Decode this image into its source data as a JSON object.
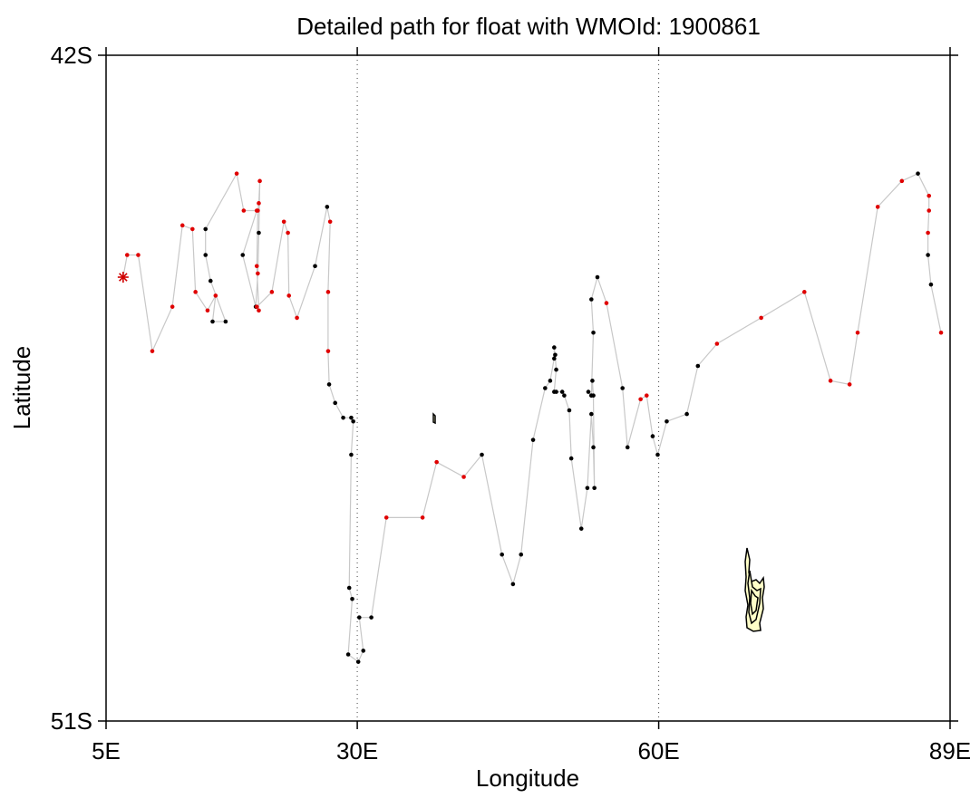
{
  "chart_data": {
    "type": "scatter",
    "title": "Detailed path for float with WMOId: 1900861",
    "xlabel": "Longitude",
    "ylabel": "Latitude",
    "xlim": [
      5,
      89
    ],
    "ylim": [
      -51,
      -42
    ],
    "x_ticks": [
      {
        "value": 5,
        "label": "5E"
      },
      {
        "value": 30,
        "label": "30E"
      },
      {
        "value": 60,
        "label": "60E"
      },
      {
        "value": 89,
        "label": "89E"
      }
    ],
    "y_ticks": [
      {
        "value": -42,
        "label": "42S"
      },
      {
        "value": -51,
        "label": "51S"
      }
    ],
    "grid_x": [
      30,
      60
    ],
    "grid_style": "dotted vertical",
    "colors": {
      "track_line": "#c8c8c8",
      "profile_black": "#000000",
      "profile_red": "#e00000",
      "start_marker": "#d00000",
      "land_fill": "#ffffc8",
      "land_edge": "#000000"
    },
    "start_marker": {
      "lon": 6.7,
      "lat": -45.0,
      "symbol": "asterisk"
    },
    "track": [
      {
        "lon": 7.1,
        "lat": -44.7,
        "c": "r"
      },
      {
        "lon": 8.2,
        "lat": -44.7,
        "c": "r"
      },
      {
        "lon": 9.6,
        "lat": -46.0,
        "c": "r"
      },
      {
        "lon": 11.6,
        "lat": -45.4,
        "c": "r"
      },
      {
        "lon": 12.6,
        "lat": -44.3,
        "c": "r"
      },
      {
        "lon": 13.6,
        "lat": -44.35,
        "c": "r"
      },
      {
        "lon": 13.9,
        "lat": -45.2,
        "c": "r"
      },
      {
        "lon": 15.1,
        "lat": -45.45,
        "c": "r"
      },
      {
        "lon": 15.9,
        "lat": -45.25,
        "c": "r"
      },
      {
        "lon": 15.6,
        "lat": -45.6,
        "c": "k"
      },
      {
        "lon": 16.9,
        "lat": -45.6,
        "c": "k"
      },
      {
        "lon": 15.4,
        "lat": -45.05,
        "c": "k"
      },
      {
        "lon": 14.9,
        "lat": -44.7,
        "c": "k"
      },
      {
        "lon": 14.9,
        "lat": -44.35,
        "c": "k"
      },
      {
        "lon": 18.0,
        "lat": -43.6,
        "c": "r"
      },
      {
        "lon": 18.7,
        "lat": -44.1,
        "c": "r"
      },
      {
        "lon": 20.0,
        "lat": -44.1,
        "c": "r"
      },
      {
        "lon": 18.6,
        "lat": -44.7,
        "c": "k"
      },
      {
        "lon": 19.9,
        "lat": -45.4,
        "c": "k"
      },
      {
        "lon": 20.1,
        "lat": -44.95,
        "c": "r"
      },
      {
        "lon": 20.2,
        "lat": -44.4,
        "c": "k"
      },
      {
        "lon": 20.3,
        "lat": -43.7,
        "c": "r"
      },
      {
        "lon": 20.2,
        "lat": -44.0,
        "c": "r"
      },
      {
        "lon": 20.1,
        "lat": -44.1,
        "c": "r"
      },
      {
        "lon": 20.0,
        "lat": -44.85,
        "c": "r"
      },
      {
        "lon": 20.2,
        "lat": -45.45,
        "c": "r"
      },
      {
        "lon": 20.0,
        "lat": -45.4,
        "c": "r"
      },
      {
        "lon": 21.5,
        "lat": -45.2,
        "c": "r"
      },
      {
        "lon": 22.7,
        "lat": -44.25,
        "c": "r"
      },
      {
        "lon": 23.1,
        "lat": -44.4,
        "c": "r"
      },
      {
        "lon": 23.2,
        "lat": -45.25,
        "c": "r"
      },
      {
        "lon": 24.0,
        "lat": -45.55,
        "c": "r"
      },
      {
        "lon": 25.8,
        "lat": -44.85,
        "c": "k"
      },
      {
        "lon": 27.0,
        "lat": -44.05,
        "c": "k"
      },
      {
        "lon": 27.3,
        "lat": -44.25,
        "c": "r"
      },
      {
        "lon": 27.1,
        "lat": -45.2,
        "c": "r"
      },
      {
        "lon": 27.1,
        "lat": -46.0,
        "c": "r"
      },
      {
        "lon": 27.2,
        "lat": -46.45,
        "c": "k"
      },
      {
        "lon": 27.8,
        "lat": -46.7,
        "c": "k"
      },
      {
        "lon": 28.6,
        "lat": -46.9,
        "c": "k"
      },
      {
        "lon": 29.4,
        "lat": -46.9,
        "c": "k"
      },
      {
        "lon": 29.6,
        "lat": -46.95,
        "c": "k"
      },
      {
        "lon": 29.4,
        "lat": -47.4,
        "c": "k"
      },
      {
        "lon": 29.2,
        "lat": -49.2,
        "c": "k"
      },
      {
        "lon": 29.5,
        "lat": -49.35,
        "c": "k"
      },
      {
        "lon": 29.1,
        "lat": -50.1,
        "c": "k"
      },
      {
        "lon": 30.1,
        "lat": -50.2,
        "c": "k"
      },
      {
        "lon": 30.6,
        "lat": -50.05,
        "c": "k"
      },
      {
        "lon": 30.2,
        "lat": -49.6,
        "c": "k"
      },
      {
        "lon": 31.4,
        "lat": -49.6,
        "c": "k"
      },
      {
        "lon": 32.9,
        "lat": -48.25,
        "c": "r"
      },
      {
        "lon": 36.5,
        "lat": -48.25,
        "c": "r"
      },
      {
        "lon": 37.9,
        "lat": -47.5,
        "c": "r"
      },
      {
        "lon": 40.6,
        "lat": -47.7,
        "c": "r"
      },
      {
        "lon": 42.4,
        "lat": -47.4,
        "c": "k"
      },
      {
        "lon": 44.4,
        "lat": -48.75,
        "c": "k"
      },
      {
        "lon": 45.5,
        "lat": -49.15,
        "c": "k"
      },
      {
        "lon": 46.3,
        "lat": -48.75,
        "c": "k"
      },
      {
        "lon": 47.5,
        "lat": -47.2,
        "c": "k"
      },
      {
        "lon": 48.7,
        "lat": -46.5,
        "c": "k"
      },
      {
        "lon": 49.2,
        "lat": -46.4,
        "c": "k"
      },
      {
        "lon": 49.6,
        "lat": -46.1,
        "c": "k"
      },
      {
        "lon": 49.6,
        "lat": -45.95,
        "c": "k"
      },
      {
        "lon": 49.7,
        "lat": -46.05,
        "c": "k"
      },
      {
        "lon": 49.8,
        "lat": -46.25,
        "c": "k"
      },
      {
        "lon": 49.6,
        "lat": -46.55,
        "c": "k"
      },
      {
        "lon": 49.8,
        "lat": -46.55,
        "c": "k"
      },
      {
        "lon": 50.4,
        "lat": -46.55,
        "c": "k"
      },
      {
        "lon": 50.6,
        "lat": -46.6,
        "c": "k"
      },
      {
        "lon": 51.1,
        "lat": -46.8,
        "c": "k"
      },
      {
        "lon": 51.3,
        "lat": -47.45,
        "c": "k"
      },
      {
        "lon": 52.3,
        "lat": -48.4,
        "c": "k"
      },
      {
        "lon": 52.9,
        "lat": -47.85,
        "c": "k"
      },
      {
        "lon": 53.3,
        "lat": -46.85,
        "c": "k"
      },
      {
        "lon": 53.5,
        "lat": -47.3,
        "c": "k"
      },
      {
        "lon": 53.6,
        "lat": -47.85,
        "c": "k"
      },
      {
        "lon": 53.5,
        "lat": -46.6,
        "c": "k"
      },
      {
        "lon": 53.4,
        "lat": -46.4,
        "c": "k"
      },
      {
        "lon": 53.3,
        "lat": -46.6,
        "c": "k"
      },
      {
        "lon": 53.0,
        "lat": -46.55,
        "c": "k"
      },
      {
        "lon": 53.3,
        "lat": -46.6,
        "c": "k"
      },
      {
        "lon": 53.5,
        "lat": -45.75,
        "c": "k"
      },
      {
        "lon": 53.3,
        "lat": -45.3,
        "c": "k"
      },
      {
        "lon": 53.9,
        "lat": -45.0,
        "c": "k"
      },
      {
        "lon": 54.8,
        "lat": -45.35,
        "c": "r"
      },
      {
        "lon": 56.4,
        "lat": -46.5,
        "c": "k"
      },
      {
        "lon": 56.9,
        "lat": -47.3,
        "c": "k"
      },
      {
        "lon": 58.2,
        "lat": -46.65,
        "c": "r"
      },
      {
        "lon": 58.8,
        "lat": -46.6,
        "c": "r"
      },
      {
        "lon": 59.4,
        "lat": -47.15,
        "c": "k"
      },
      {
        "lon": 59.9,
        "lat": -47.4,
        "c": "k"
      },
      {
        "lon": 60.8,
        "lat": -46.95,
        "c": "k"
      },
      {
        "lon": 62.8,
        "lat": -46.85,
        "c": "k"
      },
      {
        "lon": 63.9,
        "lat": -46.2,
        "c": "k"
      },
      {
        "lon": 65.8,
        "lat": -45.9,
        "c": "r"
      },
      {
        "lon": 70.2,
        "lat": -45.55,
        "c": "r"
      },
      {
        "lon": 74.5,
        "lat": -45.2,
        "c": "r"
      },
      {
        "lon": 77.1,
        "lat": -46.4,
        "c": "r"
      },
      {
        "lon": 79.0,
        "lat": -46.45,
        "c": "r"
      },
      {
        "lon": 79.8,
        "lat": -45.75,
        "c": "r"
      },
      {
        "lon": 81.8,
        "lat": -44.05,
        "c": "r"
      },
      {
        "lon": 84.2,
        "lat": -43.7,
        "c": "r"
      },
      {
        "lon": 85.8,
        "lat": -43.6,
        "c": "k"
      },
      {
        "lon": 86.9,
        "lat": -43.9,
        "c": "r"
      },
      {
        "lon": 86.9,
        "lat": -44.1,
        "c": "r"
      },
      {
        "lon": 86.8,
        "lat": -44.4,
        "c": "r"
      },
      {
        "lon": 86.8,
        "lat": -44.7,
        "c": "k"
      },
      {
        "lon": 87.1,
        "lat": -45.1,
        "c": "k"
      },
      {
        "lon": 88.1,
        "lat": -45.75,
        "c": "r"
      }
    ]
  }
}
